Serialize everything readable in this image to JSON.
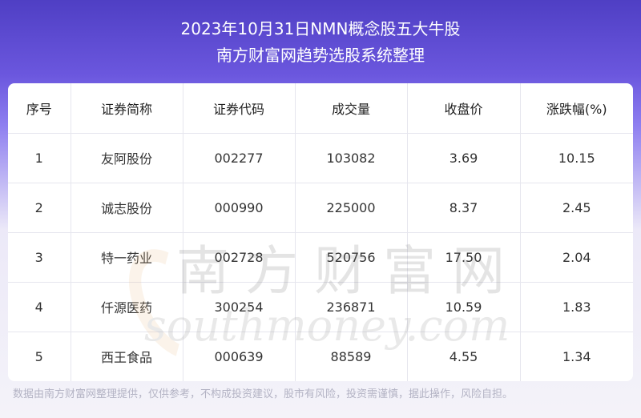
{
  "title": {
    "line1": "2023年10月31日NMN概念股五大牛股",
    "line2": "南方财富网趋势选股系统整理"
  },
  "table": {
    "headers": [
      "序号",
      "证券简称",
      "证券代码",
      "成交量",
      "收盘价",
      "涨跌幅(%)"
    ],
    "rows": [
      [
        "1",
        "友阿股份",
        "002277",
        "103082",
        "3.69",
        "10.15"
      ],
      [
        "2",
        "诚志股份",
        "000990",
        "225000",
        "8.37",
        "2.45"
      ],
      [
        "3",
        "特一药业",
        "002728",
        "520756",
        "17.50",
        "2.04"
      ],
      [
        "4",
        "仟源医药",
        "300254",
        "236871",
        "10.59",
        "1.83"
      ],
      [
        "5",
        "西王食品",
        "000639",
        "88589",
        "4.55",
        "1.34"
      ]
    ]
  },
  "watermark": {
    "cn": "南方财富网",
    "en": "southmoney.com"
  },
  "footer": {
    "disclaimer": "数据由南方财富网整理提供，仅供参考，不构成投资建议，股市有风险，投资需谨慎，据此操作，风险自担。"
  }
}
